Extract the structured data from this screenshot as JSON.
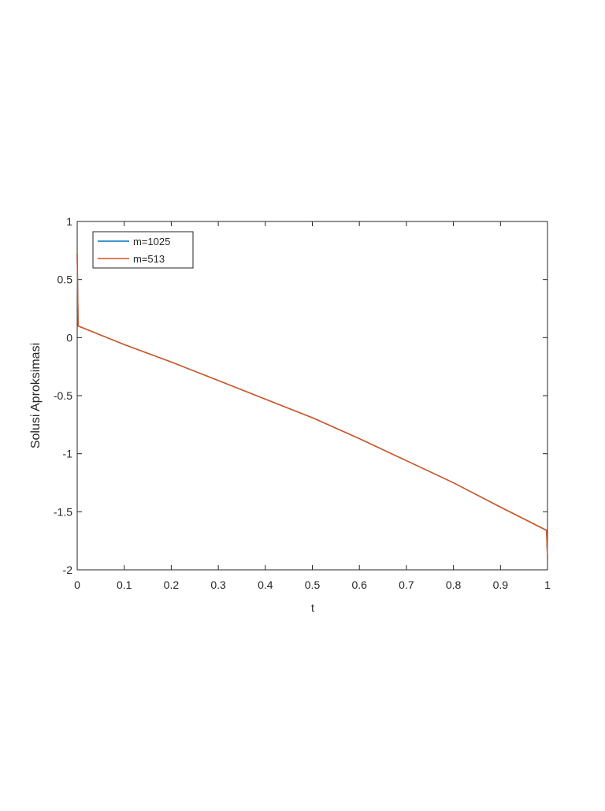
{
  "chart_data": {
    "type": "line",
    "x_label": "t",
    "y_label": "Solusi Aproksimasi",
    "x": [
      0,
      0.002,
      0.1,
      0.2,
      0.3,
      0.4,
      0.5,
      0.6,
      0.7,
      0.8,
      0.9,
      0.998,
      1
    ],
    "series": [
      {
        "name": "m=1025",
        "color": "#0072bd",
        "values": [
          0.72,
          0.1,
          -0.06,
          -0.21,
          -0.37,
          -0.53,
          -0.69,
          -0.87,
          -1.06,
          -1.25,
          -1.46,
          -1.66,
          -1.9
        ]
      },
      {
        "name": "m=513",
        "color": "#d95319",
        "values": [
          0.72,
          0.1,
          -0.06,
          -0.21,
          -0.37,
          -0.53,
          -0.69,
          -0.87,
          -1.06,
          -1.25,
          -1.46,
          -1.66,
          -1.9
        ]
      }
    ],
    "xlim": [
      0,
      1
    ],
    "xticks": [
      0,
      0.1,
      0.2,
      0.3,
      0.4,
      0.5,
      0.6,
      0.7,
      0.8,
      0.9,
      1
    ],
    "ylim": [
      -2,
      1
    ],
    "yticks": [
      -2,
      -1.5,
      -1,
      -0.5,
      0,
      0.5,
      1
    ],
    "legend": "upper-left"
  }
}
